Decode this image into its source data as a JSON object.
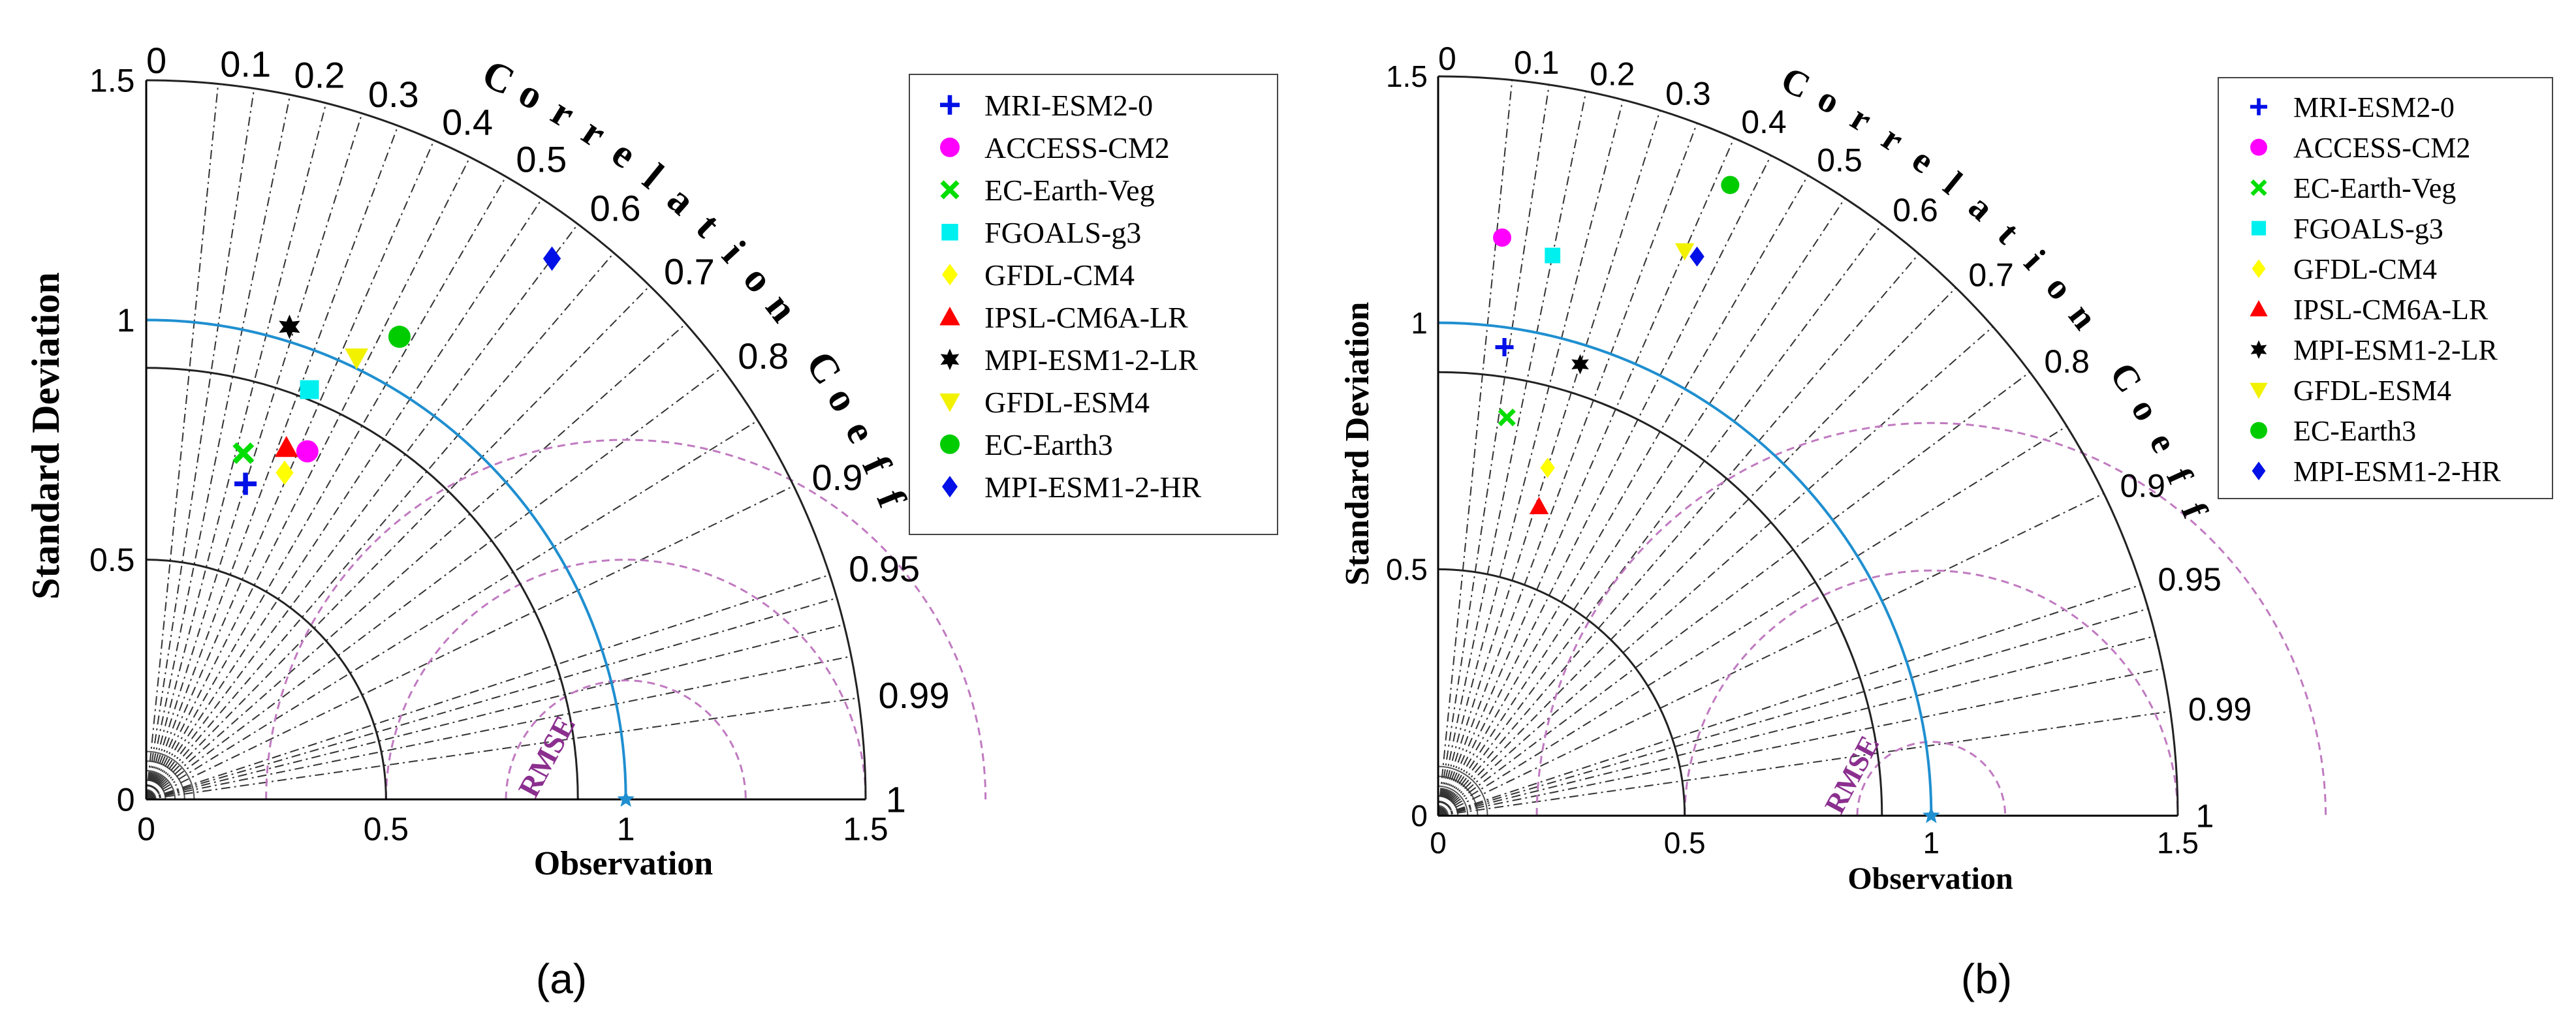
{
  "colors": {
    "ref_arc": "#1f8fd0",
    "observation_text": "#1c7fc7",
    "rmse": "#8b2f8f",
    "rmse_arc": "#c07ac0"
  },
  "chart_data": [
    {
      "type": "scatter",
      "diagram": "taylor",
      "panel_label": "(a)",
      "ylabel": "Standard Deviation",
      "correlation_label": "Correlation Coeff",
      "observation_label": "Observation",
      "rmse_label": "RMSE",
      "std_range": [
        0,
        1.5
      ],
      "std_ticks": [
        "0",
        "0.5",
        "1",
        "1.5"
      ],
      "correlation_ticks": [
        0,
        0.1,
        0.2,
        0.3,
        0.4,
        0.5,
        0.6,
        0.7,
        0.8,
        0.9,
        0.95,
        0.99,
        1
      ],
      "observation_std": 1.0,
      "rmse_contours": [
        0.25,
        0.5,
        0.75
      ],
      "std_circles": [
        0.5,
        0.9,
        1.5
      ],
      "legend_position": "right",
      "series": [
        {
          "name": "MRI-ESM2-0",
          "marker": "plus",
          "color": "#0010e6",
          "correlation": 0.3,
          "std": 0.69
        },
        {
          "name": "ACCESS-CM2",
          "marker": "circle",
          "color": "#ff00ff",
          "correlation": 0.42,
          "std": 0.8
        },
        {
          "name": "EC-Earth-Veg",
          "marker": "x",
          "color": "#00dd00",
          "correlation": 0.27,
          "std": 0.75
        },
        {
          "name": "FGOALS-g3",
          "marker": "square",
          "color": "#00f0f0",
          "correlation": 0.37,
          "std": 0.92
        },
        {
          "name": "GFDL-CM4",
          "marker": "diamond",
          "color": "#ffff00",
          "correlation": 0.39,
          "std": 0.74
        },
        {
          "name": "IPSL-CM6A-LR",
          "marker": "triangle-up",
          "color": "#ff0000",
          "correlation": 0.37,
          "std": 0.79
        },
        {
          "name": "MPI-ESM1-2-LR",
          "marker": "hexagram",
          "color": "#000000",
          "correlation": 0.29,
          "std": 1.03
        },
        {
          "name": "GFDL-ESM4",
          "marker": "triangle-down",
          "color": "#f2f200",
          "correlation": 0.43,
          "std": 1.02
        },
        {
          "name": "EC-Earth3",
          "marker": "circle",
          "color": "#00cc00",
          "correlation": 0.48,
          "std": 1.1
        },
        {
          "name": "MPI-ESM1-2-HR",
          "marker": "diamond",
          "color": "#0010e6",
          "correlation": 0.6,
          "std": 1.41
        }
      ]
    },
    {
      "type": "scatter",
      "diagram": "taylor",
      "panel_label": "(b)",
      "ylabel": "Standard Deviation",
      "correlation_label": "Correlation Coeff",
      "observation_label": "Observation",
      "rmse_label": "RMSE",
      "std_range": [
        0,
        1.5
      ],
      "std_ticks": [
        "0",
        "0.5",
        "1",
        "1.5"
      ],
      "correlation_ticks": [
        0,
        0.1,
        0.2,
        0.3,
        0.4,
        0.5,
        0.6,
        0.7,
        0.8,
        0.9,
        0.95,
        0.99,
        1
      ],
      "observation_std": 1.0,
      "rmse_contours": [
        0.15,
        0.5,
        0.8
      ],
      "std_circles": [
        0.5,
        0.9,
        1.5
      ],
      "legend_position": "right",
      "series": [
        {
          "name": "MRI-ESM2-0",
          "marker": "plus",
          "color": "#0010e6",
          "correlation": 0.14,
          "std": 0.96
        },
        {
          "name": "ACCESS-CM2",
          "marker": "circle",
          "color": "#ff00ff",
          "correlation": 0.11,
          "std": 1.18
        },
        {
          "name": "EC-Earth-Veg",
          "marker": "x",
          "color": "#00dd00",
          "correlation": 0.17,
          "std": 0.82
        },
        {
          "name": "FGOALS-g3",
          "marker": "square",
          "color": "#00f0f0",
          "correlation": 0.2,
          "std": 1.16
        },
        {
          "name": "GFDL-CM4",
          "marker": "diamond",
          "color": "#ffff00",
          "correlation": 0.3,
          "std": 0.74
        },
        {
          "name": "IPSL-CM6A-LR",
          "marker": "triangle-up",
          "color": "#ff0000",
          "correlation": 0.31,
          "std": 0.66
        },
        {
          "name": "MPI-ESM1-2-LR",
          "marker": "hexagram",
          "color": "#000000",
          "correlation": 0.3,
          "std": 0.96
        },
        {
          "name": "GFDL-ESM4",
          "marker": "triangle-down",
          "color": "#f2f200",
          "correlation": 0.4,
          "std": 1.25
        },
        {
          "name": "EC-Earth3",
          "marker": "circle",
          "color": "#00cc00",
          "correlation": 0.42,
          "std": 1.41
        },
        {
          "name": "MPI-ESM1-2-HR",
          "marker": "diamond",
          "color": "#0010e6",
          "correlation": 0.42,
          "std": 1.25
        }
      ]
    }
  ]
}
